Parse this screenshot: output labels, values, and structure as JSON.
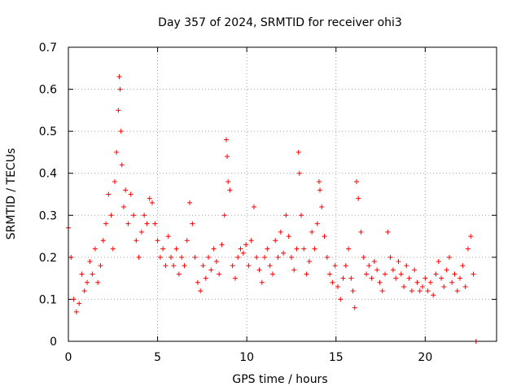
{
  "chart_data": {
    "type": "scatter",
    "title": "Day 357 of 2024, SRMTID for receiver ohi3",
    "xlabel": "GPS time / hours",
    "ylabel": "SRMTID / TECUs",
    "xlim": [
      0,
      24
    ],
    "ylim": [
      0,
      0.7
    ],
    "x_ticks": [
      "0",
      "5",
      "10",
      "15",
      "20"
    ],
    "y_ticks": [
      "0",
      "0.1",
      "0.2",
      "0.3",
      "0.4",
      "0.5",
      "0.6",
      "0.7"
    ],
    "grid": true,
    "marker": "+",
    "series": [
      {
        "name": "ohi3",
        "color": "#ff0000",
        "x": [
          0.0,
          0.15,
          0.3,
          0.45,
          0.6,
          0.75,
          0.9,
          1.05,
          1.2,
          1.35,
          1.5,
          1.65,
          1.8,
          1.95,
          2.1,
          2.25,
          2.4,
          2.5,
          2.6,
          2.7,
          2.8,
          2.85,
          2.9,
          2.95,
          3.0,
          3.1,
          3.2,
          3.35,
          3.5,
          3.65,
          3.8,
          3.95,
          4.1,
          4.25,
          4.4,
          4.55,
          4.7,
          4.85,
          5.0,
          5.15,
          5.3,
          5.45,
          5.6,
          5.75,
          5.9,
          6.05,
          6.2,
          6.35,
          6.5,
          6.65,
          6.8,
          6.95,
          7.1,
          7.25,
          7.4,
          7.55,
          7.7,
          7.85,
          8.0,
          8.15,
          8.3,
          8.45,
          8.6,
          8.75,
          8.85,
          8.9,
          8.95,
          9.05,
          9.2,
          9.35,
          9.5,
          9.65,
          9.8,
          9.95,
          10.1,
          10.25,
          10.4,
          10.55,
          10.7,
          10.85,
          11.0,
          11.15,
          11.3,
          11.45,
          11.6,
          11.75,
          11.9,
          12.05,
          12.2,
          12.35,
          12.5,
          12.65,
          12.8,
          12.9,
          12.95,
          13.05,
          13.2,
          13.35,
          13.5,
          13.65,
          13.8,
          13.95,
          14.05,
          14.1,
          14.2,
          14.35,
          14.5,
          14.65,
          14.8,
          14.95,
          15.1,
          15.25,
          15.4,
          15.55,
          15.7,
          15.85,
          15.95,
          16.05,
          16.15,
          16.25,
          16.4,
          16.55,
          16.7,
          16.85,
          17.0,
          17.15,
          17.3,
          17.45,
          17.6,
          17.75,
          17.9,
          18.05,
          18.2,
          18.35,
          18.5,
          18.65,
          18.8,
          18.95,
          19.1,
          19.25,
          19.4,
          19.55,
          19.7,
          19.85,
          20.0,
          20.15,
          20.3,
          20.45,
          20.6,
          20.75,
          20.9,
          21.05,
          21.2,
          21.35,
          21.5,
          21.65,
          21.8,
          21.95,
          22.1,
          22.25,
          22.4,
          22.55,
          22.7,
          22.85
        ],
        "y": [
          0.27,
          0.2,
          0.1,
          0.07,
          0.09,
          0.16,
          0.12,
          0.14,
          0.19,
          0.16,
          0.22,
          0.14,
          0.18,
          0.24,
          0.28,
          0.35,
          0.3,
          0.22,
          0.38,
          0.45,
          0.55,
          0.63,
          0.6,
          0.5,
          0.42,
          0.32,
          0.36,
          0.28,
          0.35,
          0.3,
          0.24,
          0.2,
          0.26,
          0.3,
          0.28,
          0.34,
          0.33,
          0.28,
          0.24,
          0.2,
          0.22,
          0.18,
          0.25,
          0.2,
          0.18,
          0.22,
          0.16,
          0.2,
          0.18,
          0.24,
          0.33,
          0.28,
          0.2,
          0.14,
          0.12,
          0.18,
          0.15,
          0.2,
          0.17,
          0.22,
          0.19,
          0.16,
          0.23,
          0.3,
          0.48,
          0.44,
          0.38,
          0.36,
          0.18,
          0.15,
          0.2,
          0.22,
          0.21,
          0.23,
          0.18,
          0.24,
          0.32,
          0.2,
          0.17,
          0.14,
          0.2,
          0.22,
          0.18,
          0.16,
          0.24,
          0.2,
          0.26,
          0.21,
          0.3,
          0.25,
          0.2,
          0.17,
          0.22,
          0.45,
          0.4,
          0.3,
          0.22,
          0.16,
          0.19,
          0.26,
          0.22,
          0.28,
          0.38,
          0.36,
          0.32,
          0.25,
          0.2,
          0.16,
          0.14,
          0.18,
          0.13,
          0.1,
          0.15,
          0.18,
          0.22,
          0.15,
          0.12,
          0.08,
          0.38,
          0.34,
          0.26,
          0.2,
          0.16,
          0.18,
          0.15,
          0.19,
          0.17,
          0.14,
          0.12,
          0.16,
          0.26,
          0.2,
          0.17,
          0.15,
          0.19,
          0.16,
          0.13,
          0.18,
          0.15,
          0.12,
          0.17,
          0.14,
          0.12,
          0.13,
          0.15,
          0.12,
          0.14,
          0.11,
          0.16,
          0.19,
          0.15,
          0.13,
          0.17,
          0.2,
          0.14,
          0.16,
          0.12,
          0.15,
          0.18,
          0.13,
          0.22,
          0.25,
          0.16,
          0.0
        ]
      }
    ]
  }
}
